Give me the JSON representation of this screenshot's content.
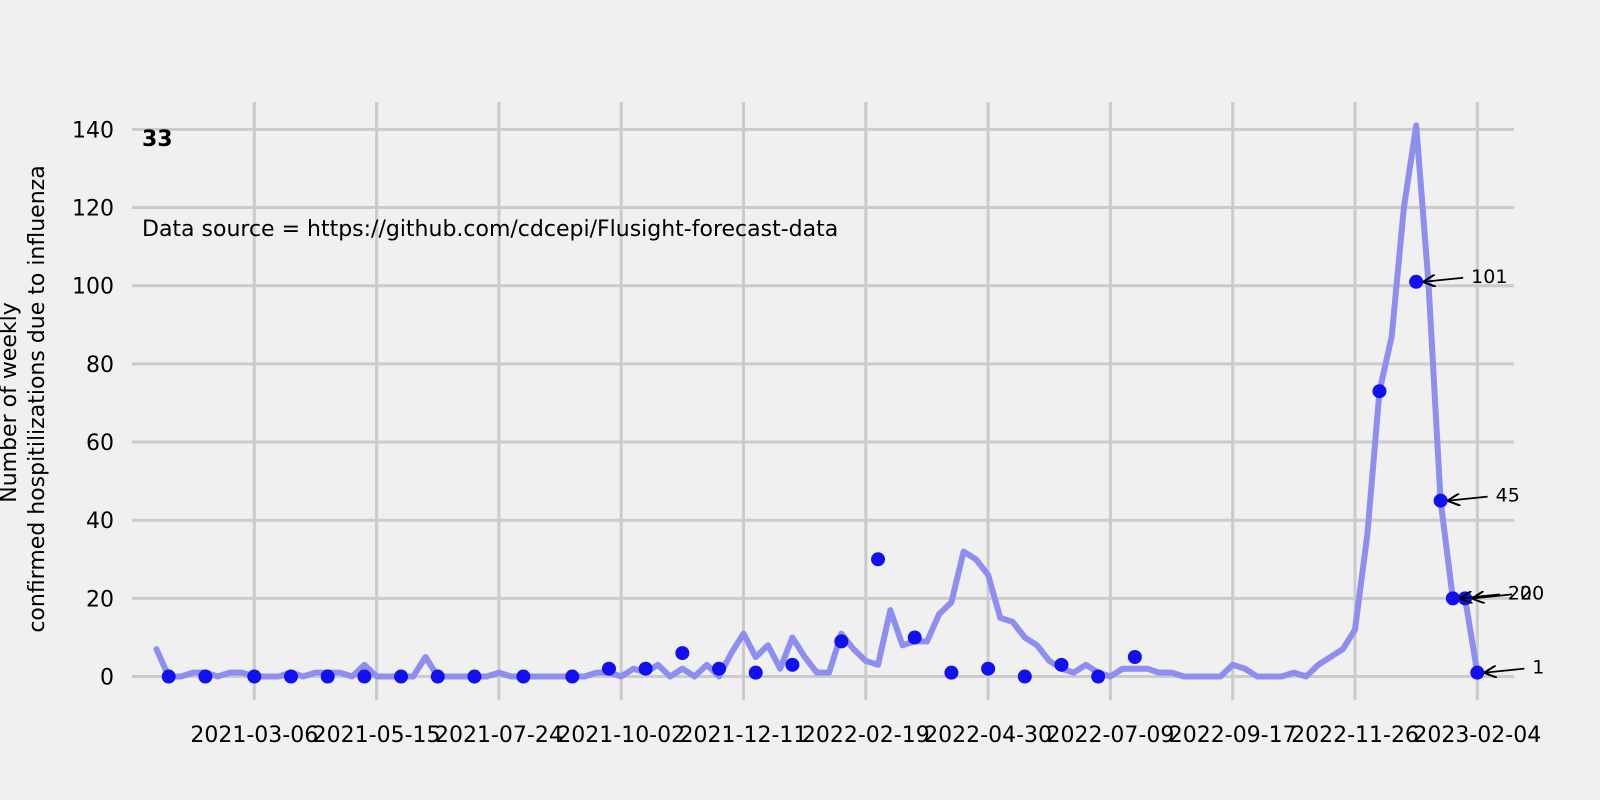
{
  "chart_data": {
    "type": "line",
    "title": "",
    "badge": "33",
    "note": "Data source = https://github.com/cdcepi/Flusight-forecast-data",
    "ylabel_lines": [
      "Number of weekly",
      "confirmed hospitilizations due to influenza"
    ],
    "xlabel": "",
    "ylim": [
      -6,
      147
    ],
    "yticks": [
      0,
      20,
      40,
      60,
      80,
      100,
      120,
      140
    ],
    "xticks": [
      "2021-03-06",
      "2021-05-15",
      "2021-07-24",
      "2021-10-02",
      "2021-12-11",
      "2022-02-19",
      "2022-04-30",
      "2022-07-09",
      "2022-09-17",
      "2022-11-26",
      "2023-02-04"
    ],
    "xlim": [
      "2020-12-26",
      "2023-02-25"
    ],
    "grid": true,
    "colors": {
      "background": "#f0f0f0",
      "grid": "#cbcbcb",
      "line": "#8e8ef0",
      "marker": "#1010f0"
    },
    "series": [
      {
        "values": [
          [
            "2021-01-09",
            7
          ],
          [
            "2021-01-16",
            0
          ],
          [
            "2021-01-23",
            0
          ],
          [
            "2021-01-30",
            1
          ],
          [
            "2021-02-06",
            1
          ],
          [
            "2021-02-13",
            0
          ],
          [
            "2021-02-20",
            1
          ],
          [
            "2021-02-27",
            1
          ],
          [
            "2021-03-06",
            0
          ],
          [
            "2021-03-13",
            0
          ],
          [
            "2021-03-20",
            0
          ],
          [
            "2021-03-27",
            1
          ],
          [
            "2021-04-03",
            0
          ],
          [
            "2021-04-10",
            1
          ],
          [
            "2021-04-17",
            1
          ],
          [
            "2021-04-24",
            1
          ],
          [
            "2021-05-01",
            0
          ],
          [
            "2021-05-08",
            3
          ],
          [
            "2021-05-15",
            0
          ],
          [
            "2021-05-22",
            0
          ],
          [
            "2021-05-29",
            0
          ],
          [
            "2021-06-05",
            0
          ],
          [
            "2021-06-12",
            5
          ],
          [
            "2021-06-19",
            0
          ],
          [
            "2021-06-26",
            0
          ],
          [
            "2021-07-03",
            0
          ],
          [
            "2021-07-10",
            0
          ],
          [
            "2021-07-17",
            0
          ],
          [
            "2021-07-24",
            1
          ],
          [
            "2021-07-31",
            0
          ],
          [
            "2021-08-07",
            0
          ],
          [
            "2021-08-14",
            0
          ],
          [
            "2021-08-21",
            0
          ],
          [
            "2021-08-28",
            0
          ],
          [
            "2021-09-04",
            0
          ],
          [
            "2021-09-11",
            0
          ],
          [
            "2021-09-18",
            1
          ],
          [
            "2021-09-25",
            1
          ],
          [
            "2021-10-02",
            0
          ],
          [
            "2021-10-09",
            2
          ],
          [
            "2021-10-16",
            1
          ],
          [
            "2021-10-23",
            3
          ],
          [
            "2021-10-30",
            0
          ],
          [
            "2021-11-06",
            2
          ],
          [
            "2021-11-13",
            0
          ],
          [
            "2021-11-20",
            3
          ],
          [
            "2021-11-27",
            0
          ],
          [
            "2021-12-04",
            6
          ],
          [
            "2021-12-11",
            11
          ],
          [
            "2021-12-18",
            5
          ],
          [
            "2021-12-25",
            8
          ],
          [
            "2022-01-01",
            2
          ],
          [
            "2022-01-08",
            10
          ],
          [
            "2022-01-15",
            5
          ],
          [
            "2022-01-22",
            1
          ],
          [
            "2022-01-29",
            1
          ],
          [
            "2022-02-05",
            11
          ],
          [
            "2022-02-12",
            7
          ],
          [
            "2022-02-19",
            4
          ],
          [
            "2022-02-26",
            3
          ],
          [
            "2022-03-05",
            17
          ],
          [
            "2022-03-12",
            8
          ],
          [
            "2022-03-19",
            9
          ],
          [
            "2022-03-26",
            9
          ],
          [
            "2022-04-02",
            16
          ],
          [
            "2022-04-09",
            19
          ],
          [
            "2022-04-16",
            32
          ],
          [
            "2022-04-23",
            30
          ],
          [
            "2022-04-30",
            26
          ],
          [
            "2022-05-07",
            15
          ],
          [
            "2022-05-14",
            14
          ],
          [
            "2022-05-21",
            10
          ],
          [
            "2022-05-28",
            8
          ],
          [
            "2022-06-04",
            4
          ],
          [
            "2022-06-11",
            2
          ],
          [
            "2022-06-18",
            1
          ],
          [
            "2022-06-25",
            3
          ],
          [
            "2022-07-02",
            1
          ],
          [
            "2022-07-09",
            0
          ],
          [
            "2022-07-16",
            2
          ],
          [
            "2022-07-23",
            2
          ],
          [
            "2022-07-30",
            2
          ],
          [
            "2022-08-06",
            1
          ],
          [
            "2022-08-13",
            1
          ],
          [
            "2022-08-20",
            0
          ],
          [
            "2022-08-27",
            0
          ],
          [
            "2022-09-03",
            0
          ],
          [
            "2022-09-10",
            0
          ],
          [
            "2022-09-17",
            3
          ],
          [
            "2022-09-24",
            2
          ],
          [
            "2022-10-01",
            0
          ],
          [
            "2022-10-08",
            0
          ],
          [
            "2022-10-15",
            0
          ],
          [
            "2022-10-22",
            1
          ],
          [
            "2022-10-29",
            0
          ],
          [
            "2022-11-05",
            3
          ],
          [
            "2022-11-12",
            5
          ],
          [
            "2022-11-19",
            7
          ],
          [
            "2022-11-26",
            12
          ],
          [
            "2022-12-03",
            36
          ],
          [
            "2022-12-10",
            73
          ],
          [
            "2022-12-17",
            87
          ],
          [
            "2022-12-24",
            120
          ],
          [
            "2022-12-31",
            141
          ],
          [
            "2023-01-07",
            101
          ],
          [
            "2023-01-14",
            45
          ],
          [
            "2023-01-21",
            20
          ],
          [
            "2023-01-28",
            20
          ],
          [
            "2023-02-04",
            1
          ]
        ]
      }
    ],
    "markers": [
      [
        "2021-01-16",
        0
      ],
      [
        "2021-02-06",
        0
      ],
      [
        "2021-03-06",
        0
      ],
      [
        "2021-03-27",
        0
      ],
      [
        "2021-04-17",
        0
      ],
      [
        "2021-05-08",
        0
      ],
      [
        "2021-05-29",
        0
      ],
      [
        "2021-06-19",
        0
      ],
      [
        "2021-07-10",
        0
      ],
      [
        "2021-08-07",
        0
      ],
      [
        "2021-09-04",
        0
      ],
      [
        "2021-09-25",
        2
      ],
      [
        "2021-10-16",
        2
      ],
      [
        "2021-11-06",
        6
      ],
      [
        "2021-11-27",
        2
      ],
      [
        "2021-12-18",
        1
      ],
      [
        "2022-01-08",
        3
      ],
      [
        "2022-02-05",
        9
      ],
      [
        "2022-02-26",
        30
      ],
      [
        "2022-03-19",
        10
      ],
      [
        "2022-04-09",
        1
      ],
      [
        "2022-04-30",
        2
      ],
      [
        "2022-05-21",
        0
      ],
      [
        "2022-06-11",
        3
      ],
      [
        "2022-07-02",
        0
      ],
      [
        "2022-07-23",
        5
      ],
      [
        "2022-12-10",
        73
      ],
      [
        "2022-12-31",
        101
      ],
      [
        "2023-01-14",
        45
      ],
      [
        "2023-01-21",
        20
      ],
      [
        "2023-01-28",
        20
      ],
      [
        "2023-02-04",
        1
      ]
    ],
    "annotations": [
      {
        "text": "101",
        "x": "2022-12-31",
        "y": 101
      },
      {
        "text": "45",
        "x": "2023-01-14",
        "y": 45
      },
      {
        "text": "20",
        "x": "2023-01-28",
        "y": 20
      },
      {
        "text": "20",
        "x": "2023-01-21",
        "y": 20
      },
      {
        "text": "1",
        "x": "2023-02-04",
        "y": 1
      }
    ]
  }
}
